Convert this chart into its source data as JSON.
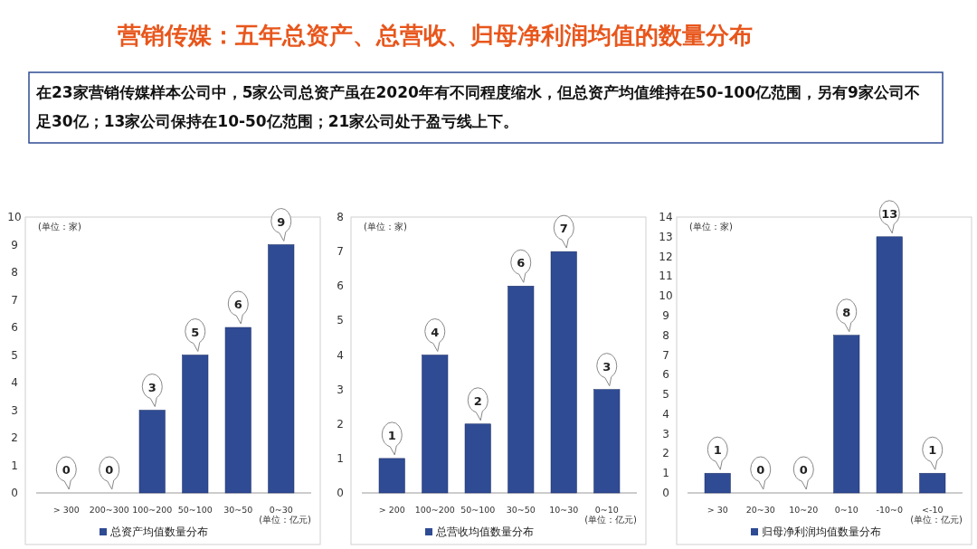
{
  "chart_data": [
    {
      "type": "other",
      "title": "营销传媒：五年总资产、总营收、归母净利润均值的数量分布",
      "annotations": [
        "在23家营销传媒样本公司中，5家公司总资产虽在2020年有不同程度缩水，但总资产均值维持在50-100亿范围，另有9家公司不足30亿；13家公司保持在10-50亿范围；21家公司处于盈亏线上下。"
      ]
    },
    {
      "type": "bar",
      "categories": [
        "> 300",
        "200~300",
        "100~200",
        "50~100",
        "30~50",
        "0~30"
      ],
      "series": [
        {
          "name": "总资产均值数量分布",
          "color": "#2f4b94",
          "values": [
            0,
            0,
            3,
            5,
            6,
            9
          ]
        }
      ],
      "ylim": [
        0,
        10
      ],
      "yticks": [
        0,
        1,
        2,
        3,
        4,
        5,
        6,
        7,
        8,
        9,
        10
      ],
      "data_labels": true,
      "legend": "bottom",
      "grid": false,
      "annotations": [
        "(单位：家)",
        "(单位：亿元)"
      ]
    },
    {
      "type": "bar",
      "categories": [
        "> 200",
        "100~200",
        "50~100",
        "30~50",
        "10~30",
        "0~10"
      ],
      "series": [
        {
          "name": "总营收均值数量分布",
          "color": "#2f4b94",
          "values": [
            1,
            4,
            2,
            6,
            7,
            3
          ]
        }
      ],
      "ylim": [
        0,
        8
      ],
      "yticks": [
        0,
        1,
        2,
        3,
        4,
        5,
        6,
        7,
        8
      ],
      "data_labels": true,
      "legend": "bottom",
      "grid": false,
      "annotations": [
        "(单位：家)",
        "(单位：亿元)"
      ]
    },
    {
      "type": "bar",
      "categories": [
        "> 30",
        "20~30",
        "10~20",
        "0~10",
        "-10~0",
        "<-10"
      ],
      "series": [
        {
          "name": "归母净利润均值数量分布",
          "color": "#2f4b94",
          "values": [
            1,
            0,
            0,
            8,
            13,
            1
          ]
        }
      ],
      "ylim": [
        0,
        14
      ],
      "yticks": [
        0,
        1,
        2,
        3,
        4,
        5,
        6,
        7,
        8,
        9,
        10,
        11,
        12,
        13,
        14
      ],
      "data_labels": true,
      "legend": "bottom",
      "grid": false,
      "annotations": [
        "(单位：家)",
        "(单位：亿元)"
      ]
    }
  ]
}
